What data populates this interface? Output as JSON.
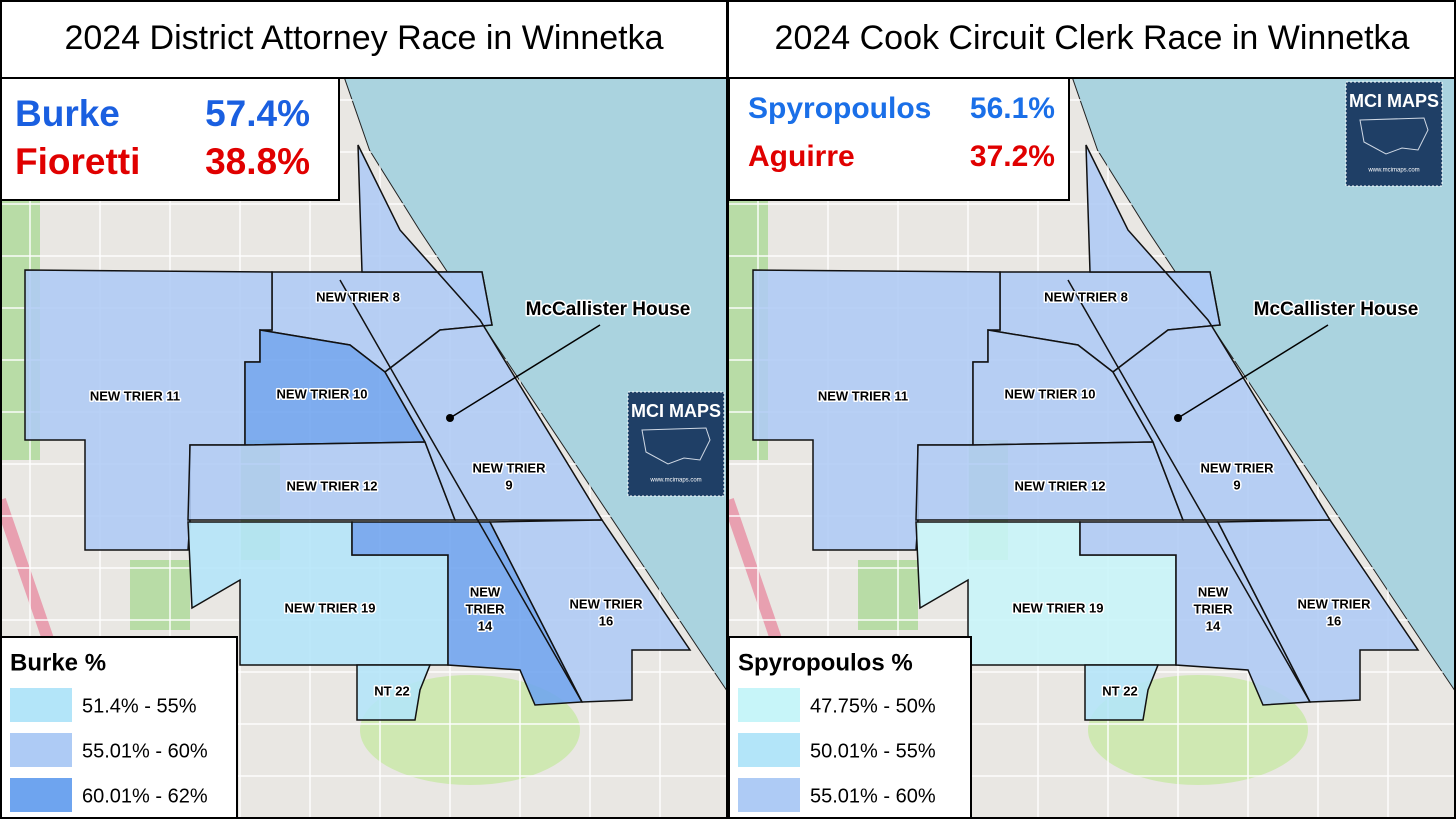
{
  "panels": [
    {
      "title": "2024 District Attorney Race in Winnetka",
      "results": [
        {
          "name": "Burke",
          "value": "57.4%",
          "color": "#1a5fe0"
        },
        {
          "name": "Fioretti",
          "value": "38.8%",
          "color": "#e00000"
        }
      ],
      "legend": {
        "title": "Burke  %",
        "bins": [
          {
            "label": "51.4% - 55%",
            "color": "#b3e5f9"
          },
          {
            "label": "55.01% - 60%",
            "color": "#aecbf5"
          },
          {
            "label": "60.01% - 62%",
            "color": "#6ea4ef"
          }
        ]
      },
      "precincts": [
        {
          "lines": [
            "NEW TRIER 8"
          ],
          "color": "#aecbf5"
        },
        {
          "lines": [
            "NEW TRIER 11"
          ],
          "color": "#aecbf5"
        },
        {
          "lines": [
            "NEW TRIER 10"
          ],
          "color": "#6ea4ef"
        },
        {
          "lines": [
            "NEW TRIER 12"
          ],
          "color": "#aecbf5"
        },
        {
          "lines": [
            "NEW TRIER",
            "9"
          ],
          "color": "#aecbf5"
        },
        {
          "lines": [
            "NEW TRIER 19"
          ],
          "color": "#b3e5f9"
        },
        {
          "lines": [
            "NEW",
            "TRIER",
            "14"
          ],
          "color": "#6ea4ef"
        },
        {
          "lines": [
            "NEW TRIER",
            "16"
          ],
          "color": "#aecbf5"
        },
        {
          "lines": [
            "NT 22"
          ],
          "color": "#b3e5f9"
        }
      ],
      "annotation": "McCallister House",
      "logo": {
        "title": "MCI MAPS",
        "url": "www.mcimaps.com"
      }
    },
    {
      "title": "2024 Cook Circuit Clerk Race in Winnetka",
      "results": [
        {
          "name": "Spyropoulos",
          "value": "56.1%",
          "color": "#1a6fe8"
        },
        {
          "name": "Aguirre",
          "value": "37.2%",
          "color": "#e00000"
        }
      ],
      "legend": {
        "title": "Spyropoulos %",
        "bins": [
          {
            "label": "47.75% - 50%",
            "color": "#c7f5f9"
          },
          {
            "label": "50.01% - 55%",
            "color": "#b3e5f9"
          },
          {
            "label": "55.01% - 60%",
            "color": "#aecbf5"
          }
        ]
      },
      "precincts": [
        {
          "lines": [
            "NEW TRIER 8"
          ],
          "color": "#aecbf5"
        },
        {
          "lines": [
            "NEW TRIER 11"
          ],
          "color": "#aecbf5"
        },
        {
          "lines": [
            "NEW TRIER 10"
          ],
          "color": "#aecbf5"
        },
        {
          "lines": [
            "NEW TRIER 12"
          ],
          "color": "#aecbf5"
        },
        {
          "lines": [
            "NEW TRIER",
            "9"
          ],
          "color": "#aecbf5"
        },
        {
          "lines": [
            "NEW TRIER 19"
          ],
          "color": "#c7f5f9"
        },
        {
          "lines": [
            "NEW",
            "TRIER",
            "14"
          ],
          "color": "#aecbf5"
        },
        {
          "lines": [
            "NEW TRIER",
            "16"
          ],
          "color": "#aecbf5"
        },
        {
          "lines": [
            "NT 22"
          ],
          "color": "#b3e5f9"
        }
      ],
      "annotation": "McCallister House",
      "logo": {
        "title": "MCI MAPS",
        "url": "www.mcimaps.com"
      }
    }
  ]
}
